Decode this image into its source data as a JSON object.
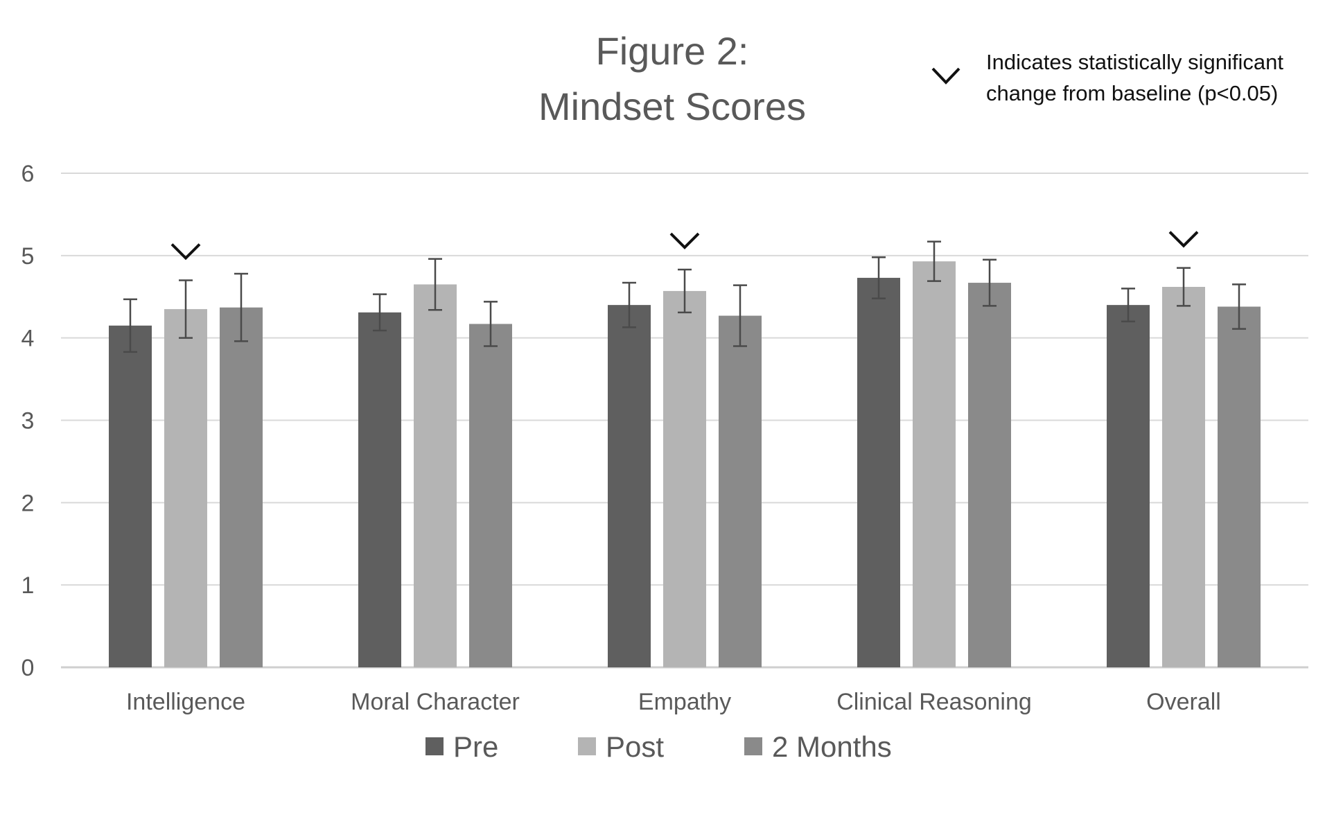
{
  "chart_data": {
    "type": "bar",
    "title_line1": "Figure 2:",
    "title_line2": "Mindset Scores",
    "significance_note_line1": "Indicates statistically significant",
    "significance_note_line2": "change from baseline (p<0.05)",
    "categories": [
      "Intelligence",
      "Moral Character",
      "Empathy",
      "Clinical Reasoning",
      "Overall"
    ],
    "series": [
      {
        "name": "Pre",
        "color": "#5f5f5f",
        "values": [
          4.15,
          4.31,
          4.4,
          4.73,
          4.4
        ],
        "error": [
          0.32,
          0.22,
          0.27,
          0.25,
          0.2
        ]
      },
      {
        "name": "Post",
        "color": "#b4b4b4",
        "values": [
          4.35,
          4.65,
          4.57,
          4.93,
          4.62
        ],
        "error": [
          0.35,
          0.31,
          0.26,
          0.24,
          0.23
        ]
      },
      {
        "name": "2 Months",
        "color": "#8a8a8a",
        "values": [
          4.37,
          4.17,
          4.27,
          4.67,
          4.38
        ],
        "error": [
          0.41,
          0.27,
          0.37,
          0.28,
          0.27
        ]
      }
    ],
    "significance_markers": [
      {
        "category": "Intelligence",
        "series": "Post"
      },
      {
        "category": "Empathy",
        "series": "Post"
      },
      {
        "category": "Overall",
        "series": "Post"
      }
    ],
    "yticks": [
      "0",
      "1",
      "2",
      "3",
      "4",
      "5",
      "6"
    ],
    "ylim": [
      0,
      6
    ],
    "grid": true,
    "legend_position": "bottom"
  }
}
